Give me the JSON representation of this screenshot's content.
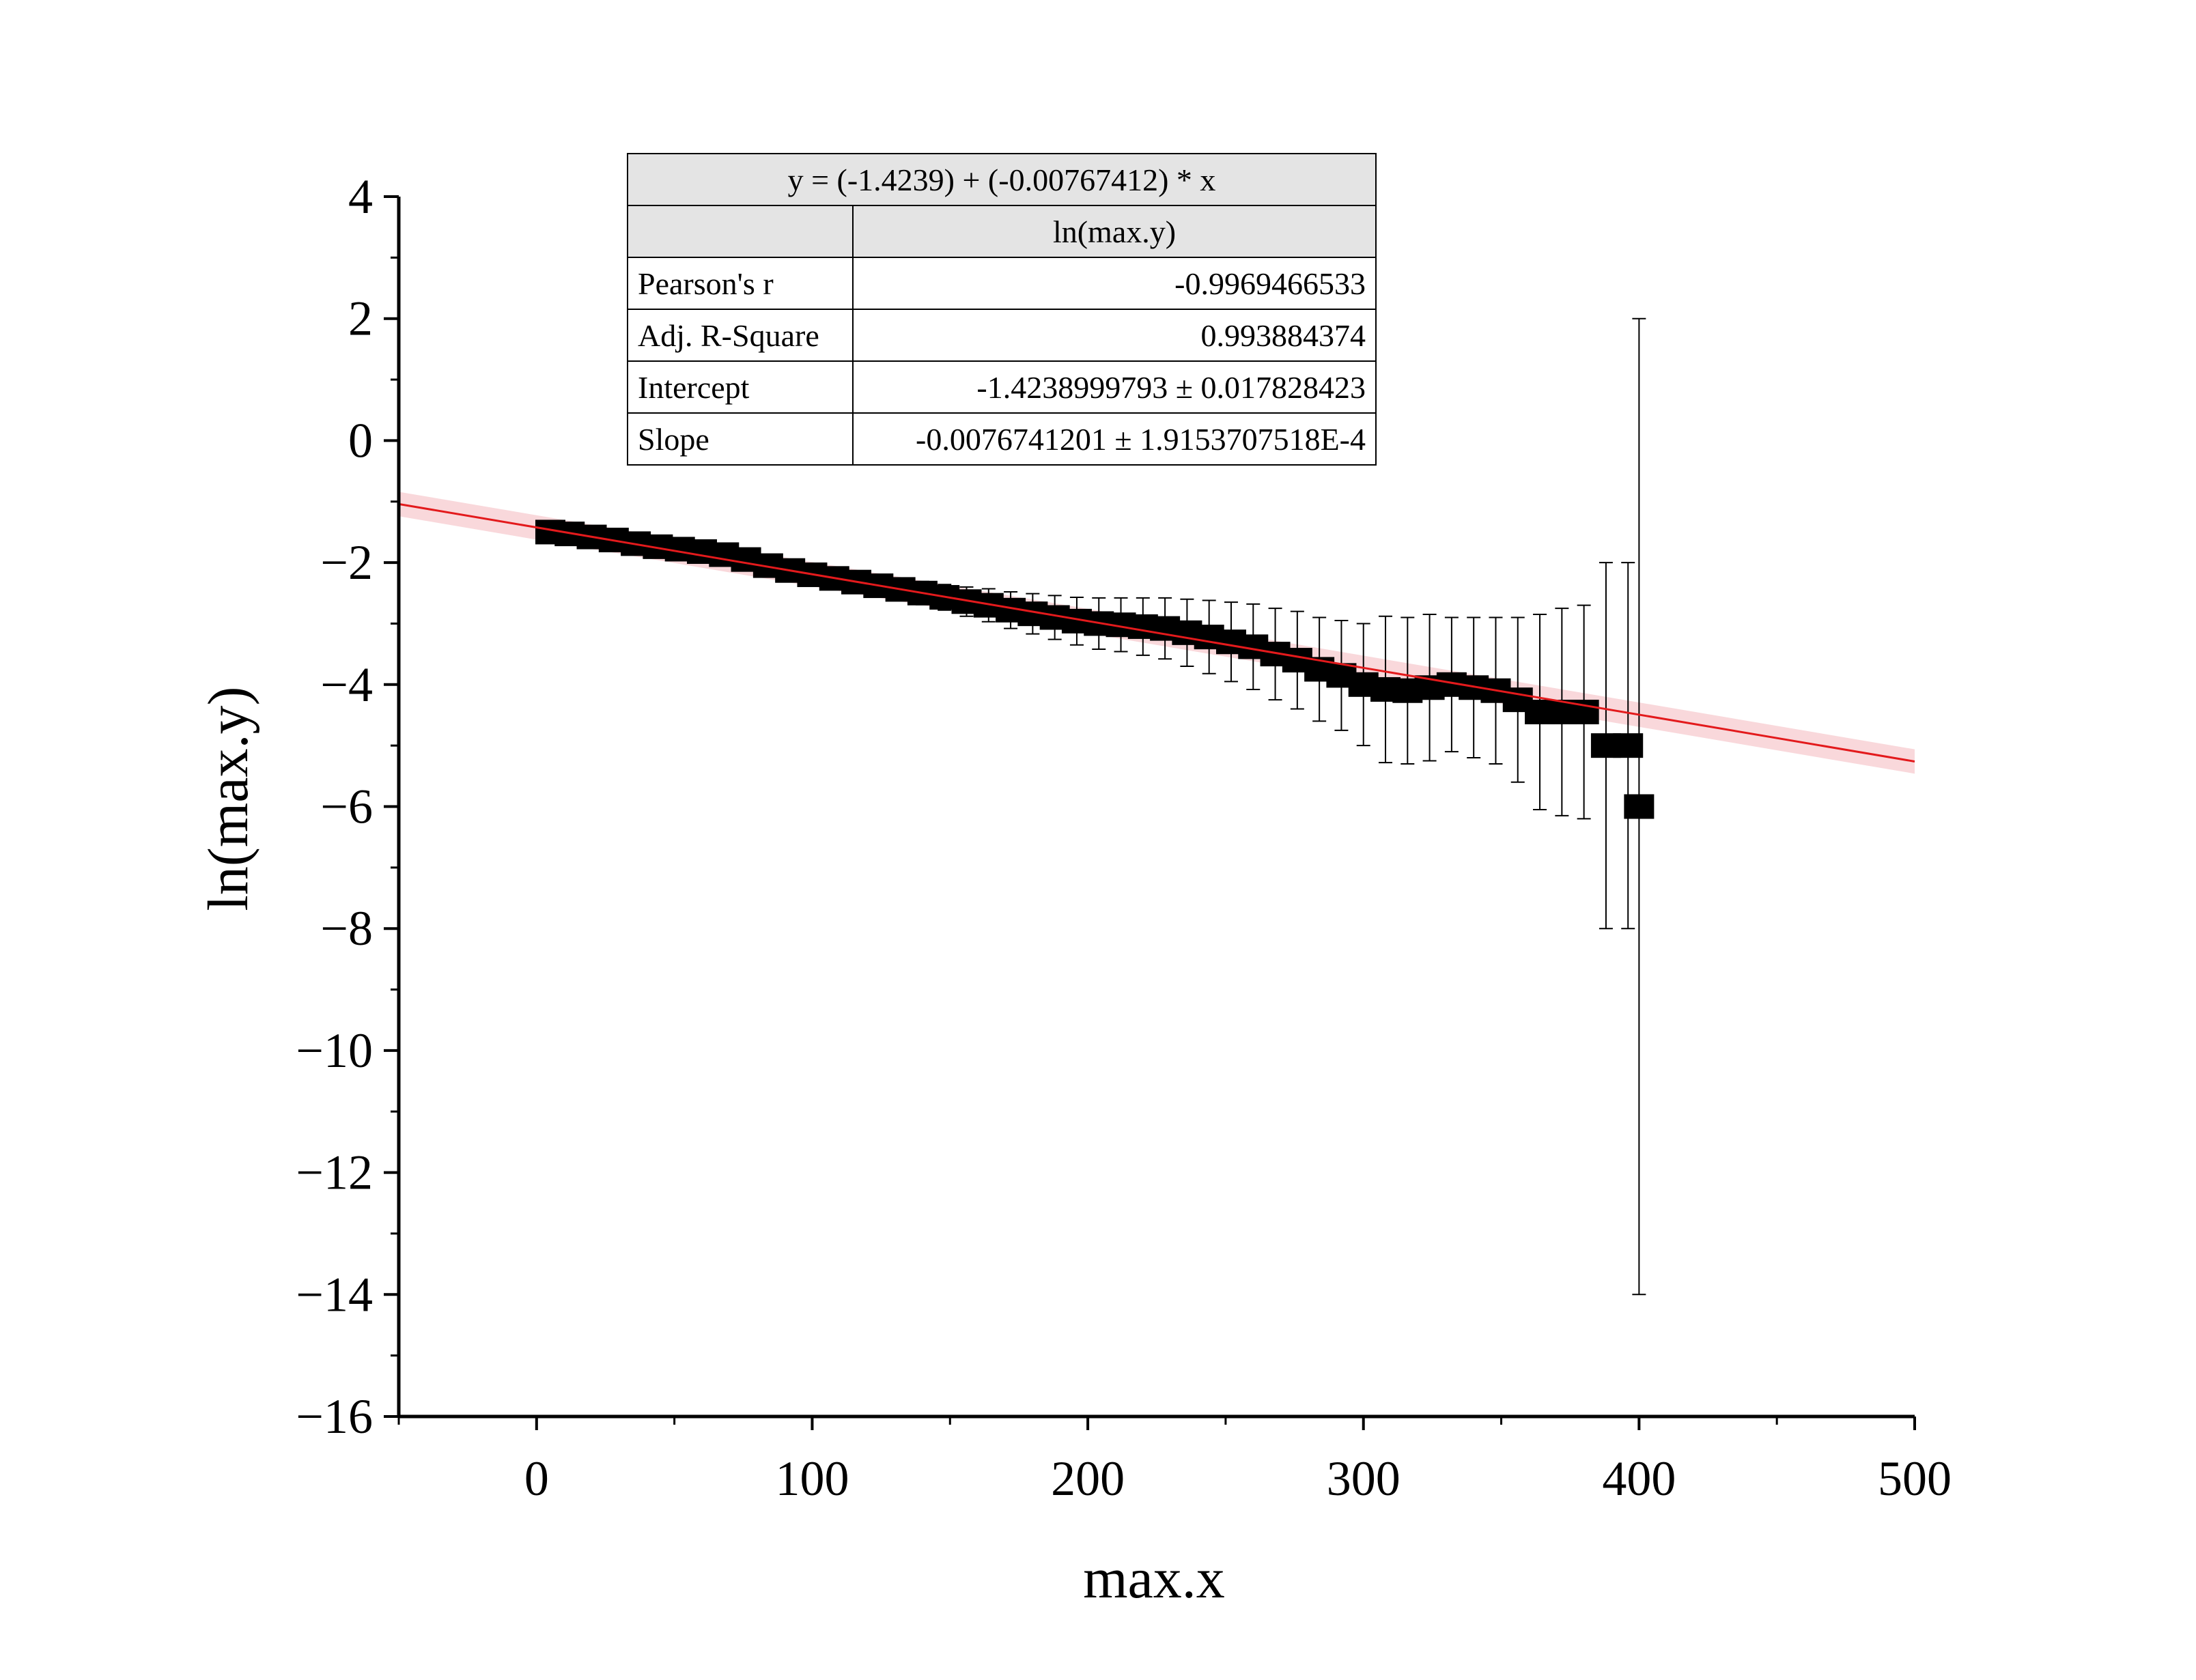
{
  "chart_data": {
    "type": "scatter",
    "xlabel": "max.x",
    "ylabel": "ln(max.y)",
    "xlim": [
      -50,
      500
    ],
    "ylim": [
      -16,
      4
    ],
    "xticks": [
      0,
      100,
      200,
      300,
      400,
      500
    ],
    "yticks": [
      4,
      2,
      0,
      -2,
      -4,
      -6,
      -8,
      -10,
      -12,
      -14,
      -16
    ],
    "xtick_labels": [
      "0",
      "100",
      "200",
      "300",
      "400",
      "500"
    ],
    "ytick_labels": [
      "4",
      "2",
      "0",
      "−2",
      "−4",
      "−6",
      "−8",
      "−10",
      "−12",
      "−14",
      "−16"
    ],
    "grid": false,
    "series": [
      {
        "points": [
          {
            "x": 5,
            "y": -1.5,
            "err": 0.08
          },
          {
            "x": 12,
            "y": -1.53,
            "err": 0.08
          },
          {
            "x": 20,
            "y": -1.58,
            "err": 0.08
          },
          {
            "x": 28,
            "y": -1.63,
            "err": 0.08
          },
          {
            "x": 36,
            "y": -1.69,
            "err": 0.08
          },
          {
            "x": 44,
            "y": -1.74,
            "err": 0.09
          },
          {
            "x": 52,
            "y": -1.78,
            "err": 0.09
          },
          {
            "x": 60,
            "y": -1.82,
            "err": 0.09
          },
          {
            "x": 68,
            "y": -1.87,
            "err": 0.1
          },
          {
            "x": 76,
            "y": -1.95,
            "err": 0.1
          },
          {
            "x": 84,
            "y": -2.05,
            "err": 0.1
          },
          {
            "x": 92,
            "y": -2.13,
            "err": 0.11
          },
          {
            "x": 100,
            "y": -2.2,
            "err": 0.12
          },
          {
            "x": 108,
            "y": -2.26,
            "err": 0.13
          },
          {
            "x": 116,
            "y": -2.32,
            "err": 0.14
          },
          {
            "x": 124,
            "y": -2.38,
            "err": 0.15
          },
          {
            "x": 132,
            "y": -2.44,
            "err": 0.17
          },
          {
            "x": 140,
            "y": -2.5,
            "err": 0.19
          },
          {
            "x": 148,
            "y": -2.57,
            "err": 0.21
          },
          {
            "x": 156,
            "y": -2.64,
            "err": 0.24
          },
          {
            "x": 164,
            "y": -2.7,
            "err": 0.27
          },
          {
            "x": 172,
            "y": -2.78,
            "err": 0.3
          },
          {
            "x": 180,
            "y": -2.84,
            "err": 0.33
          },
          {
            "x": 188,
            "y": -2.9,
            "err": 0.36
          },
          {
            "x": 196,
            "y": -2.96,
            "err": 0.39
          },
          {
            "x": 204,
            "y": -3.0,
            "err": 0.42
          },
          {
            "x": 212,
            "y": -3.02,
            "err": 0.44
          },
          {
            "x": 220,
            "y": -3.05,
            "err": 0.47
          },
          {
            "x": 228,
            "y": -3.08,
            "err": 0.5
          },
          {
            "x": 236,
            "y": -3.15,
            "err": 0.55
          },
          {
            "x": 244,
            "y": -3.22,
            "err": 0.6
          },
          {
            "x": 252,
            "y": -3.3,
            "err": 0.65
          },
          {
            "x": 260,
            "y": -3.38,
            "err": 0.7
          },
          {
            "x": 268,
            "y": -3.5,
            "err": 0.75
          },
          {
            "x": 276,
            "y": -3.6,
            "err": 0.8
          },
          {
            "x": 284,
            "y": -3.75,
            "err": 0.85
          },
          {
            "x": 292,
            "y": -3.85,
            "err": 0.9
          },
          {
            "x": 300,
            "y": -4.0,
            "err": 1.0
          },
          {
            "x": 308,
            "y": -4.08,
            "err": 1.2
          },
          {
            "x": 316,
            "y": -4.1,
            "err": 1.2
          },
          {
            "x": 324,
            "y": -4.05,
            "err": 1.2
          },
          {
            "x": 332,
            "y": -4.0,
            "err": 1.1
          },
          {
            "x": 340,
            "y": -4.05,
            "err": 1.15
          },
          {
            "x": 348,
            "y": -4.1,
            "err": 1.2
          },
          {
            "x": 356,
            "y": -4.25,
            "err": 1.35
          },
          {
            "x": 364,
            "y": -4.45,
            "err": 1.6
          },
          {
            "x": 372,
            "y": -4.45,
            "err": 1.7
          },
          {
            "x": 380,
            "y": -4.45,
            "err": 1.75
          },
          {
            "x": 388,
            "y": -5.0,
            "err": 3.0
          },
          {
            "x": 396,
            "y": -5.0,
            "err": 3.0
          },
          {
            "x": 400,
            "y": -6.0,
            "err": 8.0
          }
        ]
      }
    ],
    "fit": {
      "intercept": -1.4239,
      "slope": -0.00767412,
      "band": 0.2
    },
    "stats_table": {
      "equation": "y = (-1.4239) + (-0.00767412) * x",
      "column_header": "ln(max.y)",
      "rows": [
        {
          "label": "Pearson's r",
          "value": "-0.9969466533"
        },
        {
          "label": "Adj. R-Square",
          "value": "0.993884374"
        },
        {
          "label": "Intercept",
          "value": "-1.4238999793 ± 0.017828423"
        },
        {
          "label": "Slope",
          "value": "-0.0076741201 ± 1.9153707518E-4"
        }
      ]
    },
    "colors": {
      "fit_line": "#e31a1c",
      "confidence_band": "#f7c8cc",
      "points": "#000000"
    }
  }
}
